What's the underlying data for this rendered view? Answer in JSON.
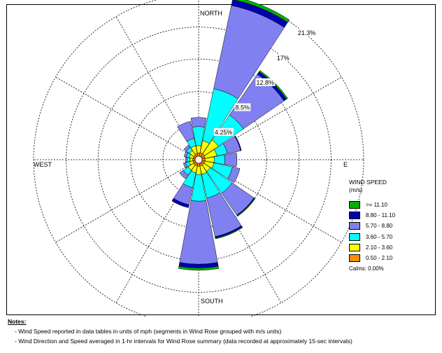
{
  "chart_data": {
    "type": "wind-rose",
    "title": "",
    "directions": {
      "north": "NORTH",
      "south": "SOUTH",
      "west": "WEST",
      "east": "E"
    },
    "ring_labels": [
      "4.25%",
      "8.5%",
      "12.8%",
      "17%",
      "21.3%"
    ],
    "ring_values": [
      4.25,
      8.5,
      12.8,
      17,
      21.3
    ],
    "sectors": [
      "N",
      "NNE",
      "NE",
      "ENE",
      "E",
      "ESE",
      "SE",
      "SSE",
      "S",
      "SSW",
      "SW",
      "WSW",
      "W",
      "WNW",
      "NW",
      "NNW"
    ],
    "series": [
      {
        "name": "0.50 - 2.10",
        "color": "#ff8c00",
        "values": [
          0.4,
          0.5,
          0.5,
          0.4,
          0.4,
          0.4,
          0.4,
          0.4,
          0.4,
          0.4,
          0.4,
          0.3,
          0.3,
          0.3,
          0.3,
          0.4
        ]
      },
      {
        "name": "2.10 - 3.60",
        "color": "#ffff00",
        "values": [
          1.0,
          1.6,
          2.2,
          1.6,
          1.2,
          1.2,
          1.0,
          1.1,
          1.1,
          0.9,
          0.8,
          0.5,
          0.4,
          0.5,
          0.7,
          1.0
        ]
      },
      {
        "name": "3.60 - 5.70",
        "color": "#00ffff",
        "values": [
          2.5,
          7.0,
          4.0,
          1.4,
          1.4,
          2.5,
          3.5,
          3.2,
          3.5,
          2.0,
          0.8,
          0.5,
          0.4,
          0.4,
          0.5,
          1.0
        ]
      },
      {
        "name": "5.70 - 8.80",
        "color": "#8080f0",
        "values": [
          1.2,
          11.2,
          6.5,
          1.8,
          1.6,
          1.0,
          3.5,
          5.2,
          8.3,
          2.3,
          0.6,
          0.3,
          0.2,
          0.3,
          0.4,
          2.3
        ]
      },
      {
        "name": "8.80 - 11.10",
        "color": "#0000b0",
        "values": [
          0.0,
          0.8,
          0.4,
          0.1,
          0.0,
          0.0,
          0.1,
          0.2,
          0.5,
          0.4,
          0.0,
          0.0,
          0.0,
          0.0,
          0.0,
          0.0
        ]
      },
      {
        "name": ">= 11.10",
        "color": "#00b000",
        "values": [
          0.0,
          0.4,
          0.2,
          0.0,
          0.0,
          0.0,
          0.1,
          0.1,
          0.3,
          0.0,
          0.0,
          0.0,
          0.0,
          0.0,
          0.0,
          0.0
        ]
      }
    ],
    "legend_title": "WIND SPEED",
    "legend_unit": "(m/s)",
    "legend_order": [
      ">= 11.10",
      "8.80 - 11.10",
      "5.70 - 8.80",
      "3.60 - 5.70",
      "2.10 - 3.60",
      "0.50 - 2.10"
    ],
    "calms": "Calms: 0.00%",
    "legend_position": "right"
  },
  "notes": {
    "title": "Notes:",
    "lines": [
      "-  Wind Speed reported in data tables in units of mph (segments in Wind Rose grouped with m/s units)",
      "-  Wind Direction and Speed averaged in 1-hr intervals for Wind Rose summary (data recorded at approximately 15-sec intervals)"
    ]
  }
}
